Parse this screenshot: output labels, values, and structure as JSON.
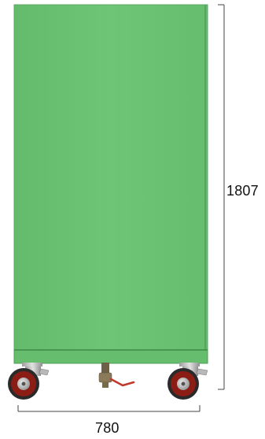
{
  "dimensions": {
    "height_label": "1807",
    "width_label": "780"
  },
  "colors": {
    "cabinet_body": "#6cc474",
    "cabinet_edge": "#4f9e57",
    "wheel_tire": "#8b1d14",
    "wheel_tread": "#2a2a2a",
    "hub": "#c8c8c8",
    "valve_handle": "#c0392b",
    "dimension_line": "#444444"
  }
}
